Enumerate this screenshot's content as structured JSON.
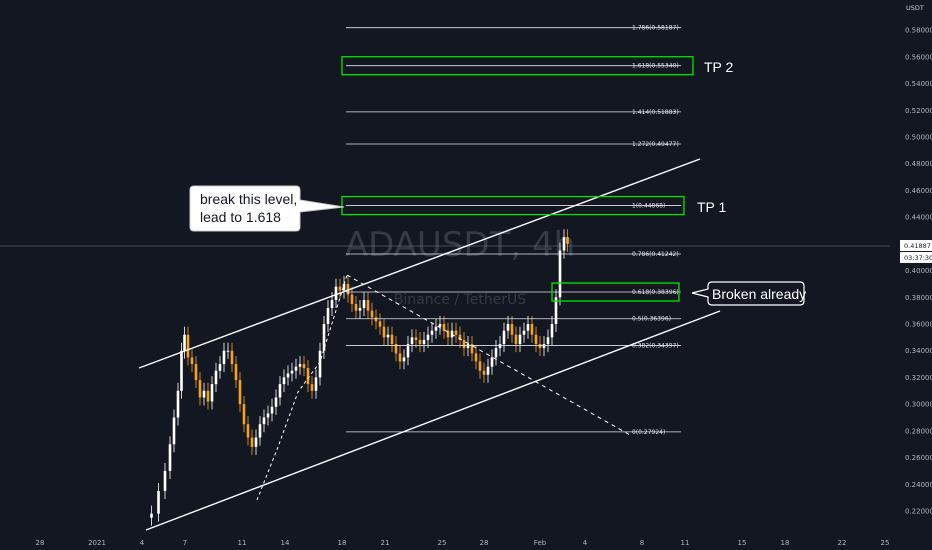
{
  "chart_data": {
    "type": "candlestick",
    "symbol_watermark": "ADAUSDT, 4h",
    "exchange_watermark": "Binance / TetherUS",
    "price_unit": "USDT",
    "y_axis": {
      "min": 0.21,
      "max": 0.59,
      "ticks": [
        "0.58000",
        "0.56000",
        "0.54000",
        "0.52000",
        "0.50000",
        "0.48000",
        "0.46000",
        "0.44000",
        "0.42000",
        "0.40000",
        "0.38000",
        "0.36000",
        "0.34000",
        "0.32000",
        "0.30000",
        "0.28000",
        "0.26000",
        "0.24000",
        "0.22000"
      ]
    },
    "x_axis": {
      "ticks": [
        "28",
        "2021",
        "4",
        "7",
        "11",
        "14",
        "18",
        "21",
        "25",
        "28",
        "Feb",
        "4",
        "8",
        "11",
        "15",
        "18",
        "22",
        "25"
      ]
    },
    "current_price": "0.41887",
    "countdown": "03:37:30",
    "fib_levels": [
      {
        "label": "0(0.27924)",
        "value": 0.27924
      },
      {
        "label": "0.382(0.34397)",
        "value": 0.34397
      },
      {
        "label": "0.5(0.36396)",
        "value": 0.36396
      },
      {
        "label": "0.618(0.38396)",
        "value": 0.38396
      },
      {
        "label": "0.786(0.41242)",
        "value": 0.41242
      },
      {
        "label": "1(0.44868)",
        "value": 0.44868
      },
      {
        "label": "1.272(0.49477)",
        "value": 0.49477
      },
      {
        "label": "1.414(0.51883)",
        "value": 0.51883
      },
      {
        "label": "1.618(0.55340)",
        "value": 0.5534
      },
      {
        "label": "1.786(0.58187)",
        "value": 0.58187
      }
    ],
    "highlighted_levels": [
      "1.618(0.55340)",
      "1(0.44868)",
      "0.618(0.38396)"
    ],
    "annotations": [
      {
        "text": "TP 2",
        "level": "1.618(0.55340)"
      },
      {
        "text": "TP 1",
        "level": "1(0.44868)"
      },
      {
        "text": "Broken already",
        "level": "0.618(0.38396)"
      },
      {
        "text_lines": [
          "break this level,",
          "lead to 1.618"
        ],
        "level": "1(0.44868)"
      }
    ],
    "colors": {
      "background": "#131722",
      "candle": "#f7a21b",
      "candle_light": "#ffffff",
      "fib_line": "#e0e3eb",
      "highlight_box": "#00e600",
      "trend_line": "#ffffff"
    }
  }
}
